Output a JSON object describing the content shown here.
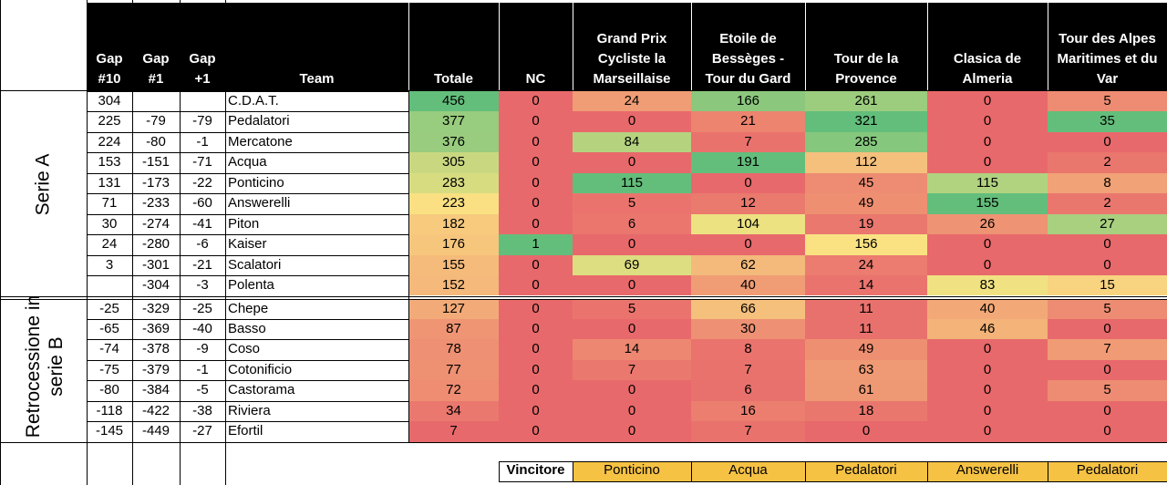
{
  "headers": {
    "gap10": "Gap #10",
    "gap1": "Gap #1",
    "gapp1": "Gap +1",
    "team": "Team",
    "totale": "Totale",
    "nc": "NC",
    "races": [
      "Grand Prix Cycliste la Marseillaise",
      "Etoile de Bessèges - Tour du Gard",
      "Tour de la Provence",
      "Clasica de Almeria",
      "Tour des Alpes Maritimes et du Var"
    ]
  },
  "sections": {
    "a": "Serie A",
    "b": "Retrocessione in serie B"
  },
  "rows": [
    {
      "gap10": "304",
      "gap1": "",
      "gapp1": "",
      "team": "C.D.A.T.",
      "totale": "456",
      "nc": "0",
      "r": [
        "24",
        "166",
        "261",
        "0",
        "5"
      ]
    },
    {
      "gap10": "225",
      "gap1": "-79",
      "gapp1": "-79",
      "team": "Pedalatori",
      "totale": "377",
      "nc": "0",
      "r": [
        "0",
        "21",
        "321",
        "0",
        "35"
      ]
    },
    {
      "gap10": "224",
      "gap1": "-80",
      "gapp1": "-1",
      "team": "Mercatone",
      "totale": "376",
      "nc": "0",
      "r": [
        "84",
        "7",
        "285",
        "0",
        "0"
      ]
    },
    {
      "gap10": "153",
      "gap1": "-151",
      "gapp1": "-71",
      "team": "Acqua",
      "totale": "305",
      "nc": "0",
      "r": [
        "0",
        "191",
        "112",
        "0",
        "2"
      ]
    },
    {
      "gap10": "131",
      "gap1": "-173",
      "gapp1": "-22",
      "team": "Ponticino",
      "totale": "283",
      "nc": "0",
      "r": [
        "115",
        "0",
        "45",
        "115",
        "8"
      ]
    },
    {
      "gap10": "71",
      "gap1": "-233",
      "gapp1": "-60",
      "team": "Answerelli",
      "totale": "223",
      "nc": "0",
      "r": [
        "5",
        "12",
        "49",
        "155",
        "2"
      ]
    },
    {
      "gap10": "30",
      "gap1": "-274",
      "gapp1": "-41",
      "team": "Piton",
      "totale": "182",
      "nc": "0",
      "r": [
        "6",
        "104",
        "19",
        "26",
        "27"
      ]
    },
    {
      "gap10": "24",
      "gap1": "-280",
      "gapp1": "-6",
      "team": "Kaiser",
      "totale": "176",
      "nc": "1",
      "r": [
        "0",
        "0",
        "156",
        "0",
        "0"
      ]
    },
    {
      "gap10": "3",
      "gap1": "-301",
      "gapp1": "-21",
      "team": "Scalatori",
      "totale": "155",
      "nc": "0",
      "r": [
        "69",
        "62",
        "24",
        "0",
        "0"
      ]
    },
    {
      "gap10": "",
      "gap1": "-304",
      "gapp1": "-3",
      "team": "Polenta",
      "totale": "152",
      "nc": "0",
      "r": [
        "0",
        "40",
        "14",
        "83",
        "15"
      ]
    },
    {
      "gap10": "-25",
      "gap1": "-329",
      "gapp1": "-25",
      "team": "Chepe",
      "totale": "127",
      "nc": "0",
      "r": [
        "5",
        "66",
        "11",
        "40",
        "5"
      ]
    },
    {
      "gap10": "-65",
      "gap1": "-369",
      "gapp1": "-40",
      "team": "Basso",
      "totale": "87",
      "nc": "0",
      "r": [
        "0",
        "30",
        "11",
        "46",
        "0"
      ]
    },
    {
      "gap10": "-74",
      "gap1": "-378",
      "gapp1": "-9",
      "team": "Coso",
      "totale": "78",
      "nc": "0",
      "r": [
        "14",
        "8",
        "49",
        "0",
        "7"
      ]
    },
    {
      "gap10": "-75",
      "gap1": "-379",
      "gapp1": "-1",
      "team": "Cotonificio",
      "totale": "77",
      "nc": "0",
      "r": [
        "7",
        "7",
        "63",
        "0",
        "0"
      ]
    },
    {
      "gap10": "-80",
      "gap1": "-384",
      "gapp1": "-5",
      "team": "Castorama",
      "totale": "72",
      "nc": "0",
      "r": [
        "0",
        "6",
        "61",
        "0",
        "5"
      ]
    },
    {
      "gap10": "-118",
      "gap1": "-422",
      "gapp1": "-38",
      "team": "Riviera",
      "totale": "34",
      "nc": "0",
      "r": [
        "0",
        "16",
        "18",
        "0",
        "0"
      ]
    },
    {
      "gap10": "-145",
      "gap1": "-449",
      "gapp1": "-27",
      "team": "Efortil",
      "totale": "7",
      "nc": "0",
      "r": [
        "0",
        "7",
        "0",
        "0",
        "0"
      ]
    }
  ],
  "winner": {
    "label": "Vincitore",
    "values": [
      "Ponticino",
      "Acqua",
      "Pedalatori",
      "Answerelli",
      "Pedalatori"
    ]
  },
  "colors": {
    "header_bg": "#000000",
    "winner_bg": "#f6c244",
    "scale_low": "#e8696b",
    "scale_mid": "#fbe583",
    "scale_high": "#63be7b"
  }
}
